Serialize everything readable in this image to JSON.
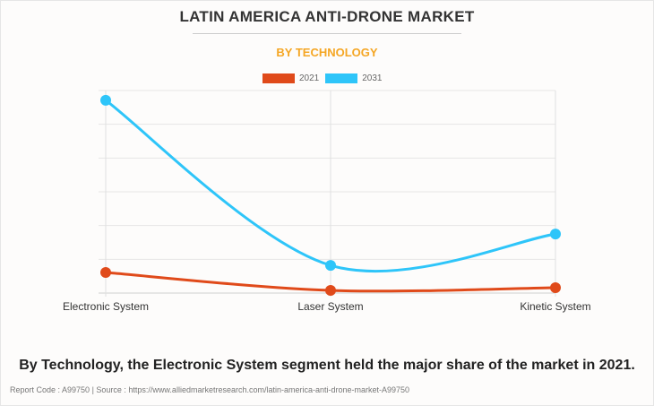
{
  "header": {
    "title": "LATIN AMERICA ANTI-DRONE MARKET",
    "subtitle": "BY TECHNOLOGY"
  },
  "legend": [
    {
      "label": "2021",
      "color": "#e04a1a"
    },
    {
      "label": "2031",
      "color": "#2ec5f9"
    }
  ],
  "chart_data": {
    "type": "line",
    "title": "LATIN AMERICA ANTI-DRONE MARKET",
    "subtitle": "BY TECHNOLOGY",
    "xlabel": "",
    "ylabel": "",
    "categories": [
      "Electronic System",
      "Laser System",
      "Kinetic System"
    ],
    "series": [
      {
        "name": "2021",
        "color": "#e04a1a",
        "values": [
          0.61,
          0.08,
          0.16
        ]
      },
      {
        "name": "2031",
        "color": "#2ec5f9",
        "values": [
          5.71,
          0.82,
          1.75
        ]
      }
    ],
    "ylim": [
      0,
      6
    ],
    "y_gridlines": 6,
    "y_tick_labels_visible": false,
    "grid": true,
    "smooth": true,
    "legend_position": "top-center",
    "units_note": "relative units (no y-axis labels shown)"
  },
  "footer": {
    "caption": "By Technology, the Electronic System segment held the major share of the market in 2021.",
    "source": "Report Code : A99750  |  Source : https://www.alliedmarketresearch.com/latin-america-anti-drone-market-A99750"
  }
}
